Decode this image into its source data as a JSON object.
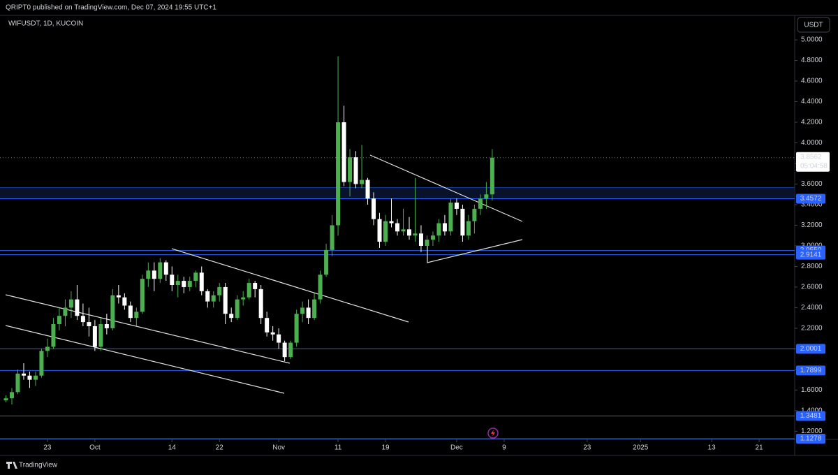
{
  "header": "QRIPT0 published on TradingView.com, Dec 07, 2024 19:55 UTC+1",
  "footer": "TradingView",
  "chart_data": {
    "type": "candlestick",
    "title": "WIFUSDT, 1D, KUCOIN",
    "currency": "USDT",
    "countdown": "05:04:58",
    "up_color": "#4caf50",
    "down_color": "#ffffff",
    "line_color": "#2962ff",
    "x": [
      "2024-09-16",
      "2024-09-17",
      "2024-09-18",
      "2024-09-19",
      "2024-09-20",
      "2024-09-21",
      "2024-09-22",
      "2024-09-23",
      "2024-09-24",
      "2024-09-25",
      "2024-09-26",
      "2024-09-27",
      "2024-09-28",
      "2024-09-29",
      "2024-09-30",
      "2024-10-01",
      "2024-10-02",
      "2024-10-03",
      "2024-10-04",
      "2024-10-05",
      "2024-10-06",
      "2024-10-07",
      "2024-10-08",
      "2024-10-09",
      "2024-10-10",
      "2024-10-11",
      "2024-10-12",
      "2024-10-13",
      "2024-10-14",
      "2024-10-15",
      "2024-10-16",
      "2024-10-17",
      "2024-10-18",
      "2024-10-19",
      "2024-10-20",
      "2024-10-21",
      "2024-10-22",
      "2024-10-23",
      "2024-10-24",
      "2024-10-25",
      "2024-10-26",
      "2024-10-27",
      "2024-10-28",
      "2024-10-29",
      "2024-10-30",
      "2024-10-31",
      "2024-11-01",
      "2024-11-02",
      "2024-11-03",
      "2024-11-04",
      "2024-11-05",
      "2024-11-06",
      "2024-11-07",
      "2024-11-08",
      "2024-11-09",
      "2024-11-10",
      "2024-11-11",
      "2024-11-12",
      "2024-11-13",
      "2024-11-14",
      "2024-11-15",
      "2024-11-16",
      "2024-11-17",
      "2024-11-18",
      "2024-11-19",
      "2024-11-20",
      "2024-11-21",
      "2024-11-22",
      "2024-11-23",
      "2024-11-24",
      "2024-11-25",
      "2024-11-26",
      "2024-11-27",
      "2024-11-28",
      "2024-11-29",
      "2024-11-30",
      "2024-12-01",
      "2024-12-02",
      "2024-12-03",
      "2024-12-04",
      "2024-12-05",
      "2024-12-06",
      "2024-12-07"
    ],
    "open": [
      1.5,
      1.52,
      1.58,
      1.76,
      1.74,
      1.7,
      1.74,
      1.98,
      2.02,
      2.24,
      2.32,
      2.4,
      2.48,
      2.32,
      2.26,
      2.22,
      2.02,
      2.24,
      2.2,
      2.52,
      2.5,
      2.42,
      2.3,
      2.36,
      2.68,
      2.76,
      2.68,
      2.84,
      2.72,
      2.62,
      2.66,
      2.6,
      2.66,
      2.74,
      2.56,
      2.46,
      2.52,
      2.6,
      2.34,
      2.3,
      2.48,
      2.5,
      2.64,
      2.58,
      2.3,
      2.16,
      2.14,
      2.06,
      1.92,
      2.06,
      2.34,
      2.4,
      2.3,
      2.48,
      2.72,
      2.96,
      3.2,
      4.2,
      3.62,
      3.86,
      3.6,
      3.64,
      3.46,
      3.26,
      3.04,
      3.24,
      3.22,
      3.14,
      3.16,
      3.1,
      3.12,
      3.0,
      3.06,
      3.1,
      3.22,
      3.14,
      3.42,
      3.36,
      3.1,
      3.24,
      3.36,
      3.46,
      3.5
    ],
    "high": [
      1.55,
      1.62,
      1.8,
      1.86,
      1.78,
      1.78,
      2.0,
      2.1,
      2.3,
      2.4,
      2.48,
      2.56,
      2.62,
      2.44,
      2.4,
      2.28,
      2.3,
      2.34,
      2.58,
      2.62,
      2.54,
      2.46,
      2.4,
      2.72,
      2.84,
      2.84,
      2.88,
      2.86,
      2.8,
      2.72,
      2.7,
      2.7,
      2.76,
      2.8,
      2.58,
      2.56,
      2.64,
      2.64,
      2.4,
      2.52,
      2.56,
      2.68,
      2.66,
      2.62,
      2.36,
      2.22,
      2.2,
      2.08,
      2.08,
      2.38,
      2.46,
      2.48,
      2.54,
      2.76,
      3.02,
      3.3,
      4.84,
      4.36,
      3.94,
      3.92,
      3.98,
      3.66,
      3.52,
      3.32,
      3.3,
      3.46,
      3.26,
      3.36,
      3.28,
      3.66,
      3.2,
      3.1,
      3.14,
      3.26,
      3.3,
      3.46,
      3.46,
      3.4,
      3.3,
      3.4,
      3.5,
      3.62,
      3.94
    ],
    "low": [
      1.48,
      1.46,
      1.56,
      1.7,
      1.62,
      1.64,
      1.72,
      1.92,
      2.0,
      2.18,
      2.22,
      2.3,
      2.28,
      2.22,
      2.12,
      1.98,
      1.98,
      2.14,
      2.18,
      2.44,
      2.38,
      2.26,
      2.22,
      2.34,
      2.6,
      2.56,
      2.64,
      2.66,
      2.56,
      2.5,
      2.54,
      2.56,
      2.6,
      2.52,
      2.4,
      2.4,
      2.46,
      2.24,
      2.26,
      2.28,
      2.42,
      2.48,
      2.5,
      2.24,
      2.12,
      2.08,
      2.0,
      1.88,
      1.9,
      2.02,
      2.26,
      2.24,
      2.28,
      2.44,
      2.7,
      2.9,
      3.1,
      3.58,
      3.48,
      3.56,
      3.56,
      3.4,
      3.2,
      2.98,
      3.0,
      3.18,
      3.1,
      3.1,
      3.06,
      3.04,
      2.94,
      2.96,
      3.0,
      3.04,
      3.1,
      3.1,
      3.3,
      3.04,
      3.06,
      3.12,
      3.3,
      3.36,
      3.44
    ],
    "close": [
      1.52,
      1.58,
      1.76,
      1.74,
      1.7,
      1.74,
      1.98,
      2.02,
      2.24,
      2.32,
      2.4,
      2.48,
      2.32,
      2.26,
      2.22,
      2.02,
      2.24,
      2.2,
      2.52,
      2.5,
      2.42,
      2.3,
      2.36,
      2.68,
      2.76,
      2.68,
      2.84,
      2.72,
      2.62,
      2.66,
      2.6,
      2.66,
      2.74,
      2.56,
      2.46,
      2.52,
      2.6,
      2.34,
      2.3,
      2.48,
      2.5,
      2.64,
      2.58,
      2.3,
      2.16,
      2.14,
      2.06,
      1.92,
      2.06,
      2.34,
      2.4,
      2.3,
      2.48,
      2.72,
      2.96,
      3.2,
      4.2,
      3.62,
      3.86,
      3.6,
      3.64,
      3.46,
      3.26,
      3.04,
      3.24,
      3.22,
      3.14,
      3.16,
      3.1,
      3.12,
      3.0,
      3.06,
      3.1,
      3.22,
      3.14,
      3.42,
      3.36,
      3.1,
      3.24,
      3.36,
      3.46,
      3.5,
      3.8562
    ],
    "xlim": [
      "2024-09-15",
      "2025-01-27"
    ],
    "ylim": [
      1.121,
      5.238
    ],
    "yticks": [
      {
        "value": 1.2,
        "label": "1.2000"
      },
      {
        "value": 1.4,
        "label": "1.4000"
      },
      {
        "value": 1.6,
        "label": "1.6000"
      },
      {
        "value": 1.8,
        "label": "1.8000"
      },
      {
        "value": 2.0,
        "label": "2.0000"
      },
      {
        "value": 2.2,
        "label": "2.2000"
      },
      {
        "value": 2.4,
        "label": "2.4000"
      },
      {
        "value": 2.6,
        "label": "2.6000"
      },
      {
        "value": 2.8,
        "label": "2.8000"
      },
      {
        "value": 3.0,
        "label": "3.0000"
      },
      {
        "value": 3.2,
        "label": "3.2000"
      },
      {
        "value": 3.4,
        "label": "3.4000"
      },
      {
        "value": 3.6,
        "label": "3.6000"
      },
      {
        "value": 3.8,
        "label": "3.8000"
      },
      {
        "value": 4.0,
        "label": "4.0000"
      },
      {
        "value": 4.2,
        "label": "4.2000"
      },
      {
        "value": 4.4,
        "label": "4.4000"
      },
      {
        "value": 4.6,
        "label": "4.6000"
      },
      {
        "value": 4.8,
        "label": "4.8000"
      },
      {
        "value": 5.0,
        "label": "5.0000"
      }
    ],
    "xticks": [
      {
        "value": "2024-09-23",
        "label": "23"
      },
      {
        "value": "2024-10-01",
        "label": "Oct"
      },
      {
        "value": "2024-10-14",
        "label": "14"
      },
      {
        "value": "2024-10-22",
        "label": "22"
      },
      {
        "value": "2024-11-01",
        "label": "Nov"
      },
      {
        "value": "2024-11-11",
        "label": "11"
      },
      {
        "value": "2024-11-19",
        "label": "19"
      },
      {
        "value": "2024-12-01",
        "label": "Dec"
      },
      {
        "value": "2024-12-09",
        "label": "9"
      },
      {
        "value": "2024-12-23",
        "label": "23"
      },
      {
        "value": "2025-01-01",
        "label": "2025"
      },
      {
        "value": "2025-01-13",
        "label": "13"
      },
      {
        "value": "2025-01-21",
        "label": "21"
      }
    ],
    "price_lines": [
      3.4572,
      {
        "value": 2.955,
        "label": "2.9550"
      },
      2.9141,
      2.0001,
      1.7899,
      1.3481,
      1.1278
    ],
    "zone_high": 3.567
  }
}
